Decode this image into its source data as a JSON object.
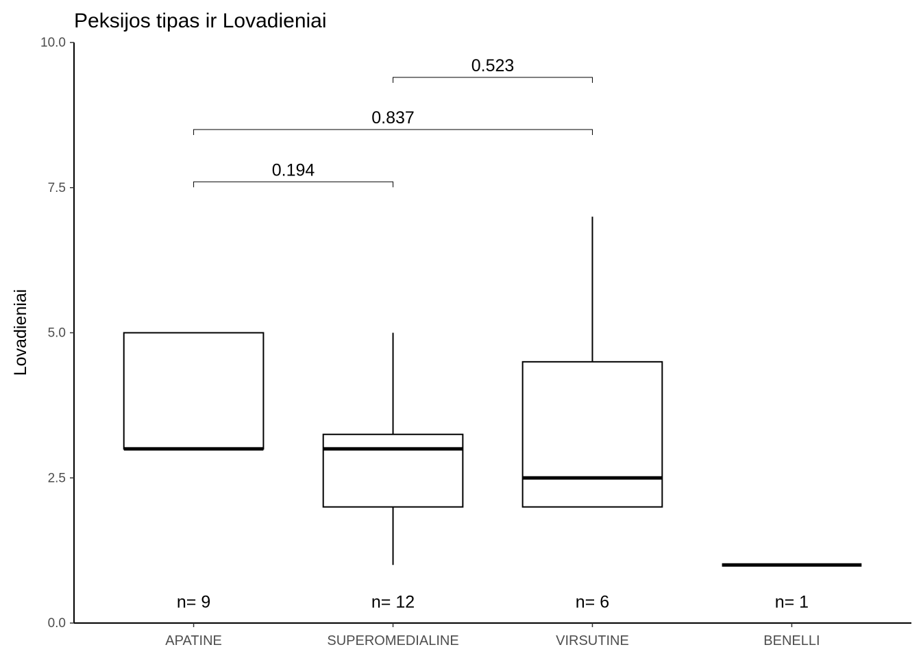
{
  "chart_data": {
    "type": "boxplot",
    "title": "Peksijos tipas ir Lovadieniai",
    "xlabel": "",
    "ylabel": "Lovadieniai",
    "ylim": [
      0,
      10
    ],
    "yticks": [
      "0.0",
      "2.5",
      "5.0",
      "7.5",
      "10.0"
    ],
    "grid": false,
    "categories": [
      "APATINE",
      "SUPEROMEDIALINE",
      "VIRSUTINE",
      "BENELLI"
    ],
    "boxes": [
      {
        "category": "APATINE",
        "min": 3,
        "q1": 3,
        "median": 3,
        "q3": 5,
        "max": 5,
        "n_label": "n= 9"
      },
      {
        "category": "SUPEROMEDIALINE",
        "min": 1,
        "q1": 2,
        "median": 3,
        "q3": 3.25,
        "max": 5,
        "n_label": "n= 12"
      },
      {
        "category": "VIRSUTINE",
        "min": 2,
        "q1": 2,
        "median": 2.5,
        "q3": 4.5,
        "max": 7,
        "n_label": "n= 6"
      },
      {
        "category": "BENELLI",
        "min": 1,
        "q1": 1,
        "median": 1,
        "q3": 1,
        "max": 1,
        "n_label": "n= 1"
      }
    ],
    "comparisons": [
      {
        "from": 0,
        "to": 1,
        "y": 7.6,
        "label": "0.194"
      },
      {
        "from": 0,
        "to": 2,
        "y": 8.5,
        "label": "0.837"
      },
      {
        "from": 1,
        "to": 2,
        "y": 9.4,
        "label": "0.523"
      }
    ],
    "n_label_y": 0.37
  }
}
